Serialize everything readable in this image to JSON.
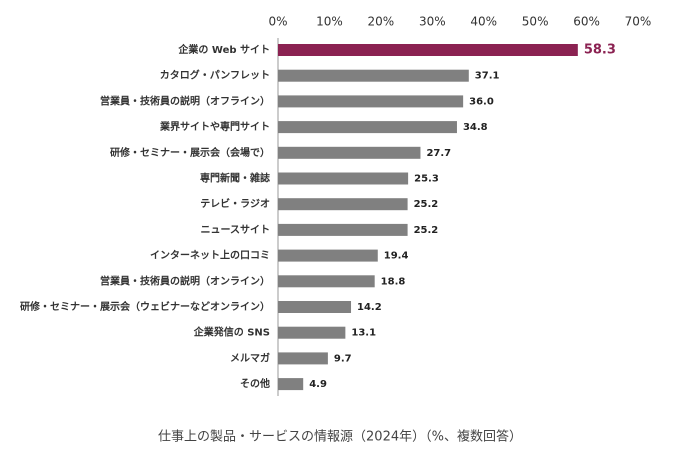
{
  "chart_data": {
    "type": "bar",
    "orientation": "horizontal",
    "title": "仕事上の製品・サービスの情報源（2024年）（%、複数回答）",
    "categories": [
      "企業の Web サイト",
      "カタログ・パンフレット",
      "営業員・技術員の説明（オフライン）",
      "業界サイトや専門サイト",
      "研修・セミナー・展示会（会場で）",
      "専門新聞・雑誌",
      "テレビ・ラジオ",
      "ニュースサイト",
      "インターネット上の口コミ",
      "営業員・技術員の説明（オンライン）",
      "研修・セミナー・展示会（ウェビナーなどオンライン）",
      "企業発信の SNS",
      "メルマガ",
      "その他"
    ],
    "values": [
      58.3,
      37.1,
      36.0,
      34.8,
      27.7,
      25.3,
      25.2,
      25.2,
      19.4,
      18.8,
      14.2,
      13.1,
      9.7,
      4.9
    ],
    "value_labels": [
      "58.3",
      "37.1",
      "36.0",
      "34.8",
      "27.7",
      "25.3",
      "25.2",
      "25.2",
      "19.4",
      "18.8",
      "14.2",
      "13.1",
      "9.7",
      "4.9"
    ],
    "colors": [
      "#8b2252",
      "#808080",
      "#808080",
      "#808080",
      "#808080",
      "#808080",
      "#808080",
      "#808080",
      "#808080",
      "#808080",
      "#808080",
      "#808080",
      "#808080",
      "#808080"
    ],
    "xlim": [
      0,
      70
    ],
    "xticks": [
      {
        "value": 0,
        "label": "0%"
      },
      {
        "value": 10,
        "label": "10%"
      },
      {
        "value": 20,
        "label": "20%"
      },
      {
        "value": 30,
        "label": "30%"
      },
      {
        "value": 40,
        "label": "40%"
      },
      {
        "value": 50,
        "label": "50%"
      },
      {
        "value": 60,
        "label": "60%"
      },
      {
        "value": 70,
        "label": "70%"
      }
    ],
    "grid": false
  }
}
